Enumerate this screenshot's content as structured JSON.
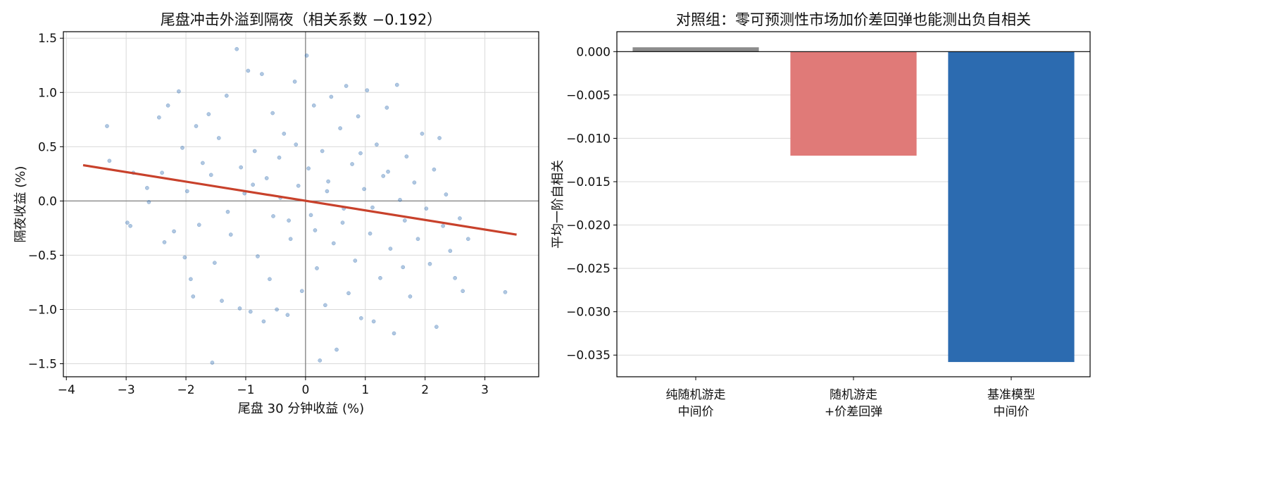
{
  "chart_data": [
    {
      "type": "scatter",
      "title": "尾盘冲击外溢到隔夜（相关系数 −0.192）",
      "xlabel": "尾盘 30 分钟收益 (%)",
      "ylabel": "隔夜收益 (%)",
      "xlim": [
        -4.05,
        3.9
      ],
      "ylim": [
        -1.62,
        1.56
      ],
      "xticks": [
        -4,
        -3,
        -2,
        -1,
        0,
        1,
        2,
        3
      ],
      "xtick_labels": [
        "−4",
        "−3",
        "−2",
        "−1",
        "0",
        "1",
        "2",
        "3"
      ],
      "yticks": [
        -1.5,
        -1.0,
        -0.5,
        0.0,
        0.5,
        1.0,
        1.5
      ],
      "ytick_labels": [
        "−1.5",
        "−1.0",
        "−0.5",
        "0.0",
        "0.5",
        "1.0",
        "1.5"
      ],
      "grid": true,
      "reference_lines": {
        "x": 0,
        "y": 0
      },
      "point_color": "#2f6db0",
      "line_color": "#c8412b",
      "regression": {
        "x": [
          -3.72,
          3.53
        ],
        "y": [
          0.33,
          -0.31
        ]
      },
      "points": [
        [
          -3.32,
          0.69
        ],
        [
          -3.28,
          0.37
        ],
        [
          -2.98,
          -0.2
        ],
        [
          -2.93,
          -0.23
        ],
        [
          -2.88,
          0.26
        ],
        [
          -2.65,
          0.12
        ],
        [
          -2.62,
          -0.01
        ],
        [
          -2.45,
          0.77
        ],
        [
          -2.4,
          0.26
        ],
        [
          -2.36,
          -0.38
        ],
        [
          -2.3,
          0.88
        ],
        [
          -2.2,
          -0.28
        ],
        [
          -2.12,
          1.01
        ],
        [
          -2.06,
          0.49
        ],
        [
          -2.02,
          -0.52
        ],
        [
          -1.98,
          0.09
        ],
        [
          -1.92,
          -0.72
        ],
        [
          -1.88,
          -0.88
        ],
        [
          -1.83,
          0.69
        ],
        [
          -1.78,
          -0.22
        ],
        [
          -1.72,
          0.35
        ],
        [
          -1.62,
          0.8
        ],
        [
          -1.56,
          -1.49
        ],
        [
          -1.52,
          -0.57
        ],
        [
          -1.45,
          0.58
        ],
        [
          -1.4,
          -0.92
        ],
        [
          -1.32,
          0.97
        ],
        [
          -1.25,
          -0.31
        ],
        [
          -1.15,
          1.4
        ],
        [
          -1.1,
          -0.99
        ],
        [
          -1.02,
          0.07
        ],
        [
          -0.96,
          1.2
        ],
        [
          -0.92,
          -1.02
        ],
        [
          -0.85,
          0.46
        ],
        [
          -0.8,
          -0.51
        ],
        [
          -0.73,
          1.17
        ],
        [
          -0.7,
          -1.11
        ],
        [
          -0.65,
          0.21
        ],
        [
          -0.6,
          -0.72
        ],
        [
          -0.55,
          0.81
        ],
        [
          -0.48,
          -1.0
        ],
        [
          -0.42,
          0.03
        ],
        [
          -0.36,
          0.62
        ],
        [
          -0.3,
          -1.05
        ],
        [
          -0.25,
          -0.35
        ],
        [
          -0.18,
          1.1
        ],
        [
          -0.12,
          0.14
        ],
        [
          -0.06,
          -0.83
        ],
        [
          0.02,
          1.34
        ],
        [
          0.05,
          0.3
        ],
        [
          0.09,
          -0.13
        ],
        [
          0.14,
          0.88
        ],
        [
          0.19,
          -0.62
        ],
        [
          0.24,
          -1.47
        ],
        [
          0.28,
          0.46
        ],
        [
          0.33,
          -0.96
        ],
        [
          0.38,
          0.18
        ],
        [
          0.43,
          0.96
        ],
        [
          0.47,
          -0.39
        ],
        [
          0.52,
          -1.37
        ],
        [
          0.58,
          0.67
        ],
        [
          0.62,
          -0.2
        ],
        [
          0.68,
          1.06
        ],
        [
          0.72,
          -0.85
        ],
        [
          0.78,
          0.34
        ],
        [
          0.83,
          -0.55
        ],
        [
          0.88,
          0.78
        ],
        [
          0.93,
          -1.08
        ],
        [
          0.98,
          0.11
        ],
        [
          1.03,
          1.02
        ],
        [
          1.08,
          -0.3
        ],
        [
          1.14,
          -1.11
        ],
        [
          1.19,
          0.52
        ],
        [
          1.25,
          -0.71
        ],
        [
          1.3,
          0.23
        ],
        [
          1.36,
          0.86
        ],
        [
          1.42,
          -0.44
        ],
        [
          1.48,
          -1.22
        ],
        [
          1.53,
          1.07
        ],
        [
          1.58,
          0.01
        ],
        [
          1.63,
          -0.61
        ],
        [
          1.69,
          0.41
        ],
        [
          1.75,
          -0.88
        ],
        [
          1.82,
          0.17
        ],
        [
          1.88,
          -0.35
        ],
        [
          1.95,
          0.62
        ],
        [
          2.02,
          -0.07
        ],
        [
          2.08,
          -0.58
        ],
        [
          2.15,
          0.29
        ],
        [
          2.19,
          -1.16
        ],
        [
          2.24,
          0.58
        ],
        [
          2.3,
          -0.23
        ],
        [
          2.35,
          0.06
        ],
        [
          2.42,
          -0.46
        ],
        [
          2.5,
          -0.71
        ],
        [
          2.58,
          -0.16
        ],
        [
          2.63,
          -0.83
        ],
        [
          2.72,
          -0.35
        ],
        [
          3.34,
          -0.84
        ],
        [
          -0.44,
          0.4
        ],
        [
          0.16,
          -0.27
        ],
        [
          -0.28,
          -0.18
        ],
        [
          0.36,
          0.09
        ],
        [
          -0.16,
          0.52
        ],
        [
          0.64,
          -0.07
        ],
        [
          -0.54,
          -0.14
        ],
        [
          0.92,
          0.44
        ],
        [
          -0.88,
          0.15
        ],
        [
          1.12,
          -0.06
        ],
        [
          -1.08,
          0.31
        ],
        [
          1.38,
          0.27
        ],
        [
          -1.3,
          -0.1
        ],
        [
          1.66,
          -0.18
        ],
        [
          -1.58,
          0.24
        ]
      ]
    },
    {
      "type": "bar",
      "title": "对照组：零可预测性市场加价差回弹也能测出负自相关",
      "xlabel": "",
      "ylabel": "平均一阶自相关",
      "categories": [
        [
          "纯随机游走",
          "中间价"
        ],
        [
          "随机游走",
          "+价差回弹"
        ],
        [
          "基准模型",
          "中间价"
        ]
      ],
      "values": [
        0.0005,
        -0.012,
        -0.0358
      ],
      "colors": [
        "#8c8c8c",
        "#e07a78",
        "#2c6bb0"
      ],
      "ylim": [
        -0.0375,
        0.0023
      ],
      "yticks": [
        0.0,
        -0.005,
        -0.01,
        -0.015,
        -0.02,
        -0.025,
        -0.03,
        -0.035
      ],
      "ytick_labels": [
        "0.000",
        "−0.005",
        "−0.010",
        "−0.015",
        "−0.020",
        "−0.025",
        "−0.030",
        "−0.035"
      ],
      "grid": true
    }
  ]
}
